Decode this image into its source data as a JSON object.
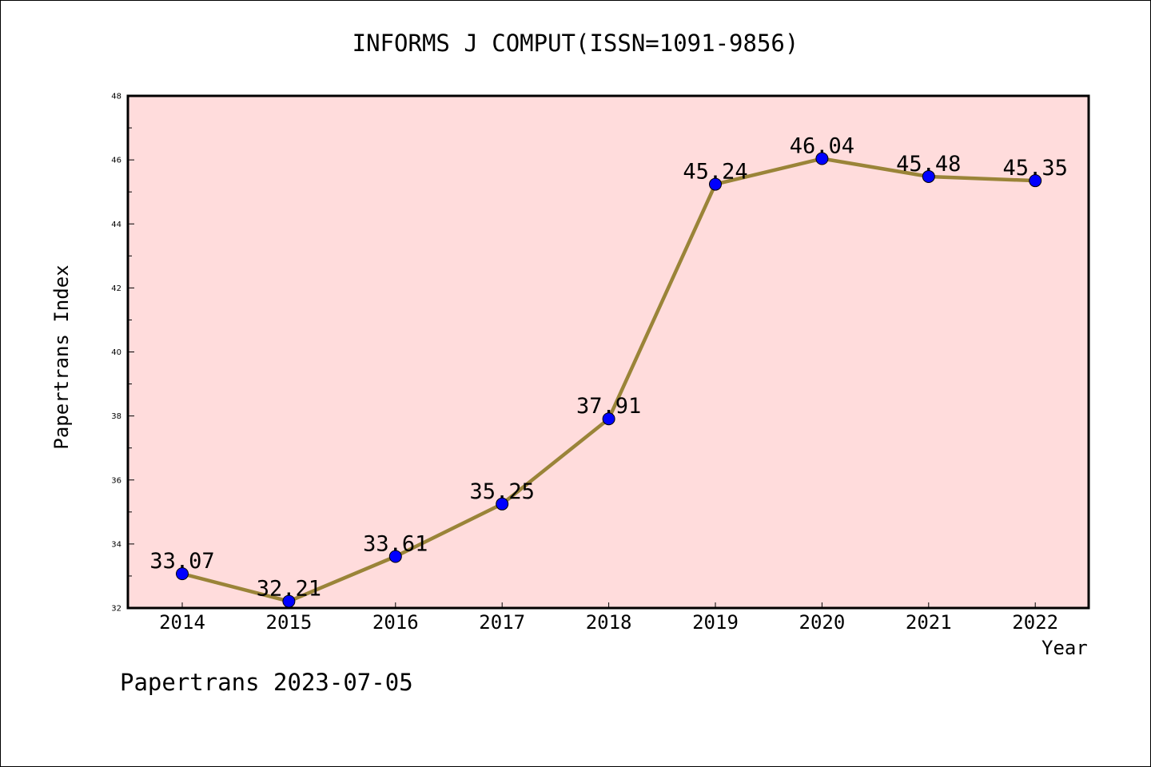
{
  "chart_data": {
    "type": "line",
    "title": "INFORMS J COMPUT(ISSN=1091-9856)",
    "xlabel": "Year",
    "ylabel": "Papertrans Index",
    "categories": [
      "2014",
      "2015",
      "2016",
      "2017",
      "2018",
      "2019",
      "2020",
      "2021",
      "2022"
    ],
    "series": [
      {
        "values": [
          33.07,
          32.21,
          33.61,
          35.25,
          37.91,
          45.24,
          46.04,
          45.48,
          45.35
        ],
        "labels": [
          "33.07",
          "32.21",
          "33.61",
          "35.25",
          "37.91",
          "45.24",
          "46.04",
          "45.48",
          "45.35"
        ],
        "line_color": "#9a8438",
        "marker_color": "#0000ff"
      }
    ],
    "ylim": [
      32,
      48
    ],
    "yticks": [
      "32",
      "34",
      "36",
      "38",
      "40",
      "42",
      "44",
      "46",
      "48"
    ],
    "grid": false,
    "legend": "none",
    "plot_background": "#ffdcdc"
  },
  "footer": "Papertrans 2023-07-05"
}
